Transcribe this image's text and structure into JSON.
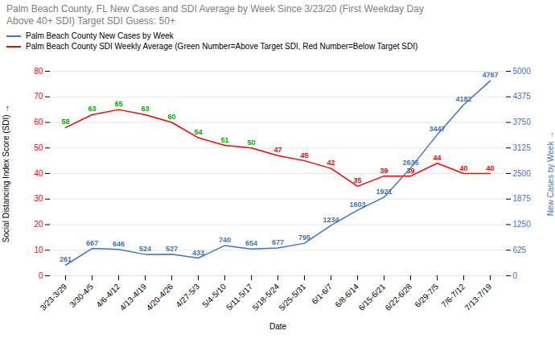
{
  "chart_data": {
    "type": "line",
    "title": "Palm Beach County, FL New Cases and SDI Average by Week Since 3/23/20 (First Weekday Day\nAbove 40+ SDI) Target SDI Guess: 50+",
    "x_label": "Date",
    "y_label": "Social Distancing Index Score (SDI)",
    "y2_label": "New Cases by Week",
    "categories": [
      "3/23-3/29",
      "3/30-4/5",
      "4/6-4/12",
      "4/13-4/19",
      "4/20-4/26",
      "4/27-5/3",
      "5/4-5/10",
      "5/11-5/17",
      "5/18-5/24",
      "5/25-5/31",
      "6/1-6/7",
      "6/8-6/14",
      "6/15-6/21",
      "6/22-6/28",
      "6/29-7/5",
      "7/6-7/12",
      "7/13-7/19"
    ],
    "series": [
      {
        "name": "Palm Beach County New Cases by Week",
        "color": "#4472C4",
        "axis": "y2",
        "values": [
          261,
          667,
          646,
          524,
          527,
          433,
          740,
          654,
          677,
          795,
          1234,
          1603,
          1921,
          2635,
          3447,
          4182,
          4767
        ]
      },
      {
        "name": "Palm Beach County SDI Weekly Average (Green Number=Above Target SDI, Red Number=Below Target SDI)",
        "color": "#FF0000",
        "axis": "y",
        "values": [
          58,
          63,
          65,
          63,
          60,
          54,
          51,
          50,
          47,
          45,
          42,
          35,
          39,
          39,
          44,
          40,
          40
        ],
        "colors": [
          "#00AA00",
          "#00AA00",
          "#00AA00",
          "#00AA00",
          "#00AA00",
          "#00AA00",
          "#00AA00",
          "#00AA00",
          "#FF0000",
          "#FF0000",
          "#FF0000",
          "#FF0000",
          "#FF0000",
          "#FF0000",
          "#FF0000",
          "#FF0000",
          "#FF0000"
        ]
      }
    ],
    "ylim": [
      0,
      80
    ],
    "yticks": [
      0,
      10,
      20,
      30,
      40,
      50,
      60,
      70,
      80
    ],
    "y2lim": [
      0,
      5000
    ],
    "y2ticks": [
      0,
      625,
      1250,
      1875,
      2500,
      3125,
      3750,
      4375,
      5000
    ],
    "grid": true,
    "legend": "upper left",
    "data_labels": true
  }
}
